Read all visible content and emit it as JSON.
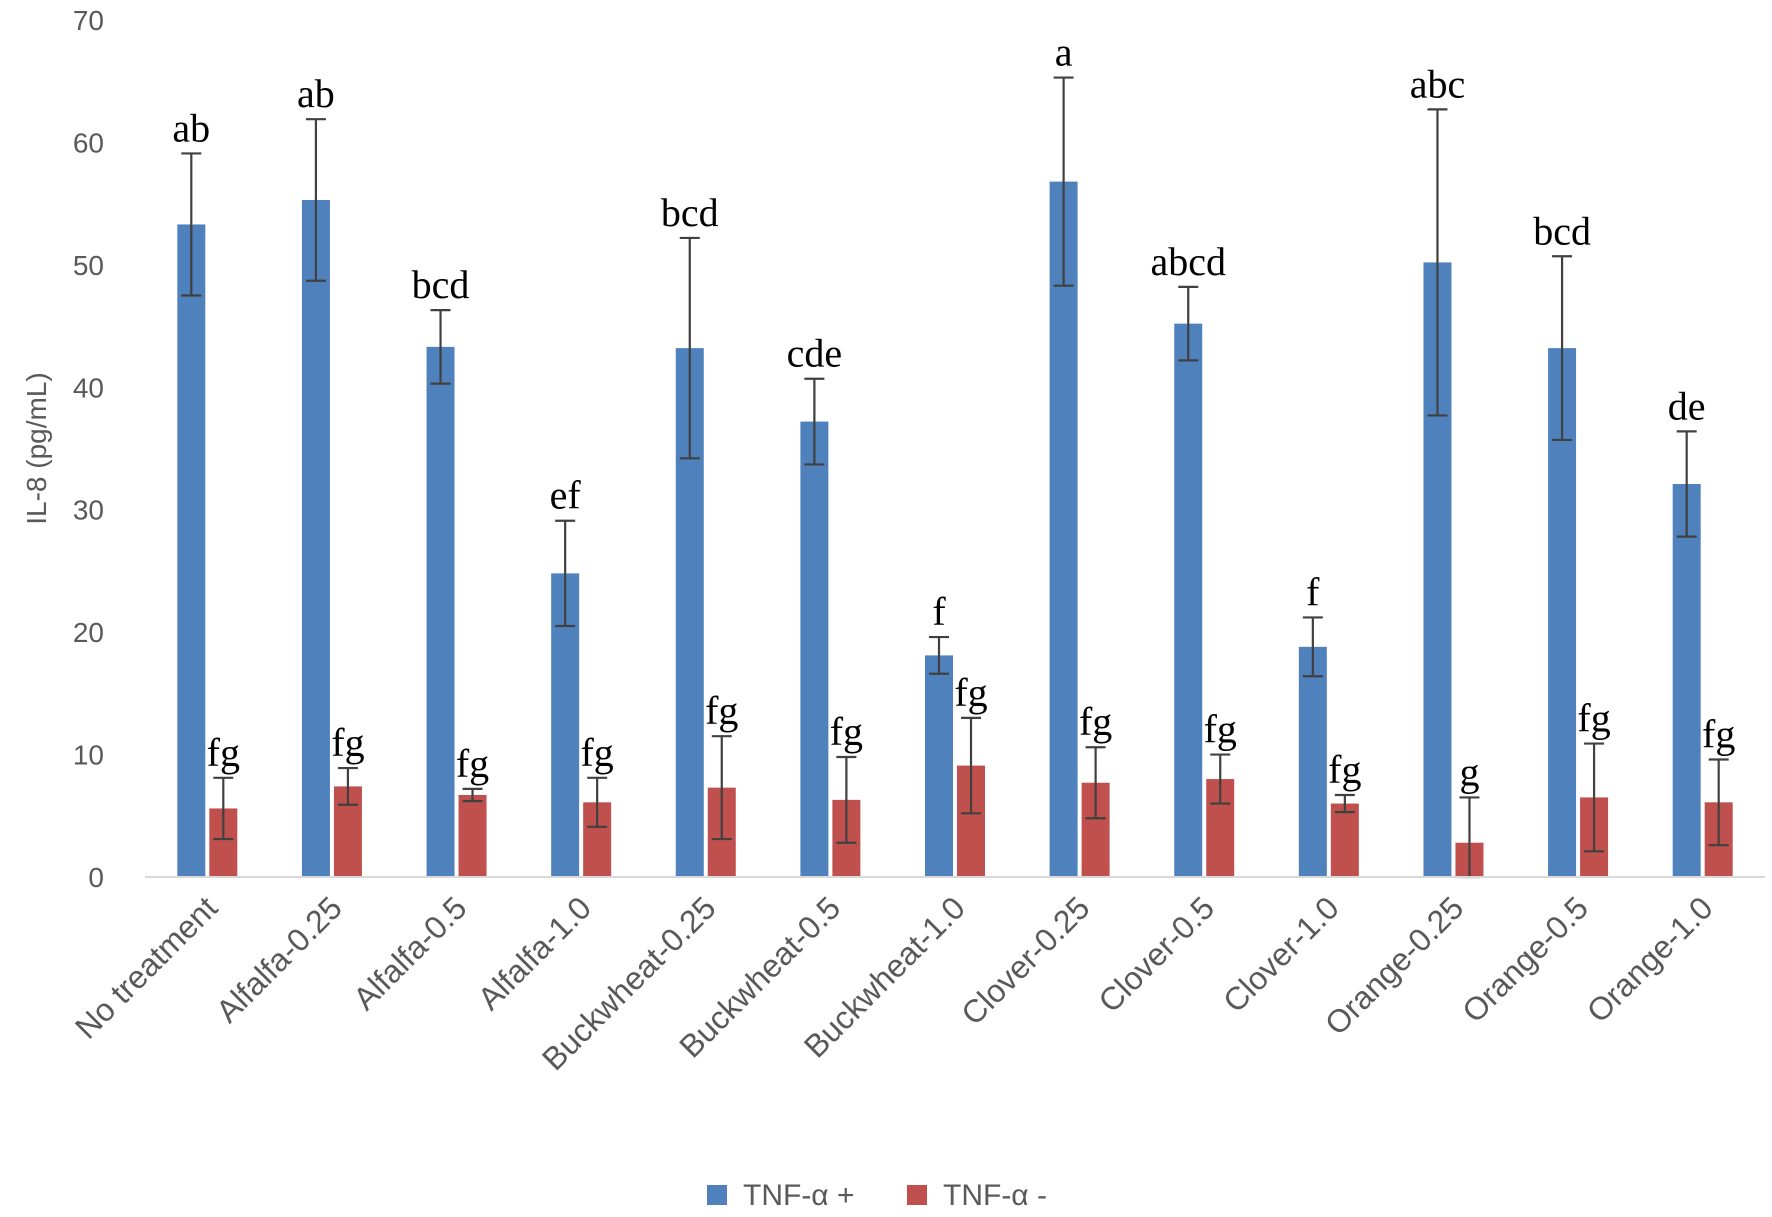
{
  "chart_data": {
    "type": "bar",
    "ylabel": "IL-8 (pg/mL)",
    "ylim": [
      0,
      70
    ],
    "yticks": [
      0,
      10,
      20,
      30,
      40,
      50,
      60,
      70
    ],
    "grid": false,
    "legend_position": "bottom",
    "categories": [
      "No treatment",
      "Alfalfa-0.25",
      "Alfalfa-0.5",
      "Alfalfa-1.0",
      "Buckwheat-0.25",
      "Buckwheat-0.5",
      "Buckwheat-1.0",
      "Clover-0.25",
      "Clover-0.5",
      "Clover-1.0",
      "Orange-0.25",
      "Orange-0.5",
      "Orange-1.0"
    ],
    "series": [
      {
        "name": "TNF-α +",
        "color": "#4f81bd",
        "values": [
          53.3,
          55.3,
          43.3,
          24.8,
          43.2,
          37.2,
          18.1,
          56.8,
          45.2,
          18.8,
          50.2,
          43.2,
          32.1
        ],
        "error": [
          5.8,
          6.6,
          3.0,
          4.3,
          9.0,
          3.5,
          1.5,
          8.5,
          3.0,
          2.4,
          12.5,
          7.5,
          4.3
        ],
        "sig_labels": [
          "ab",
          "ab",
          "bcd",
          "ef",
          "bcd",
          "cde",
          "f",
          "a",
          "abcd",
          "f",
          "abc",
          "bcd",
          "de"
        ]
      },
      {
        "name": "TNF-α -",
        "color": "#c0504d",
        "values": [
          5.6,
          7.4,
          6.7,
          6.1,
          7.3,
          6.3,
          9.1,
          7.7,
          8.0,
          6.0,
          2.8,
          6.5,
          6.1
        ],
        "error": [
          2.5,
          1.5,
          0.5,
          2.0,
          4.2,
          3.5,
          3.9,
          2.9,
          2.0,
          0.7,
          3.7,
          4.4,
          3.5
        ],
        "sig_labels": [
          "fg",
          "fg",
          "fg",
          "fg",
          "fg",
          "fg",
          "fg",
          "fg",
          "fg",
          "fg",
          "g",
          "fg",
          "fg"
        ]
      }
    ]
  }
}
